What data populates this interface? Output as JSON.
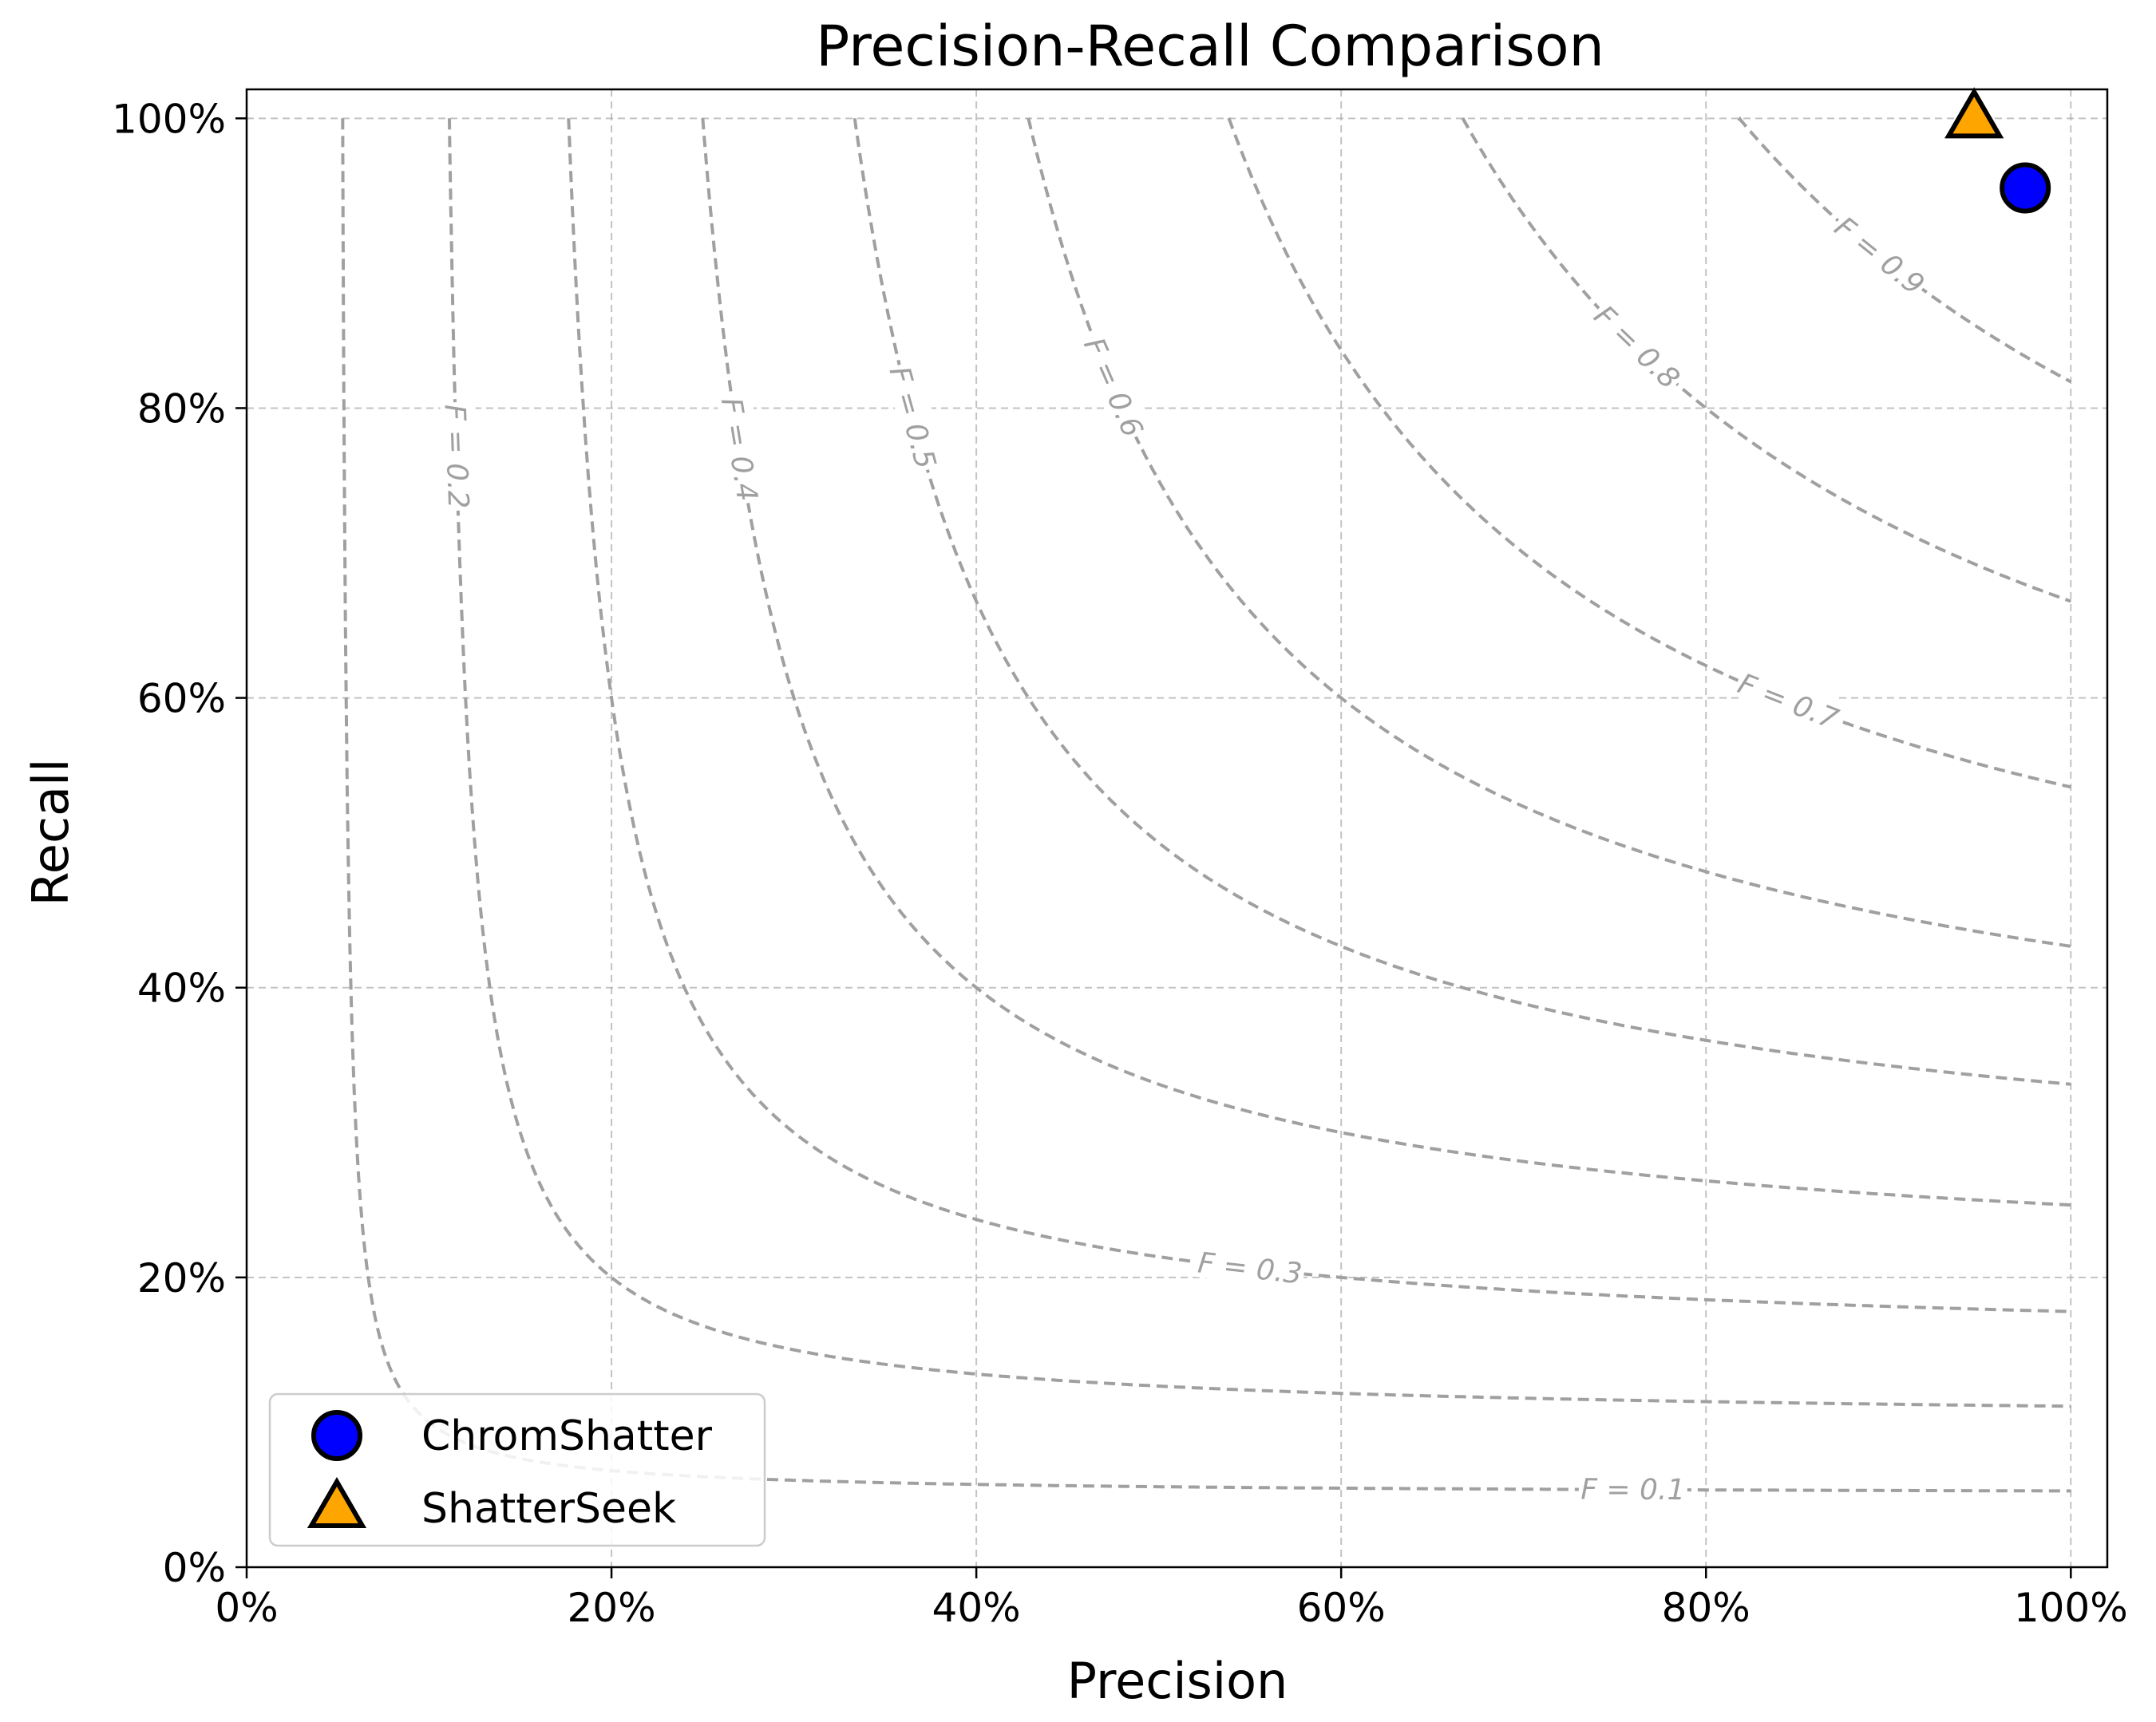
{
  "chart_data": {
    "type": "scatter",
    "title": "Precision-Recall Comparison",
    "xlabel": "Precision",
    "ylabel": "Recall",
    "xlim": [
      0,
      1.02
    ],
    "ylim": [
      0,
      1.02
    ],
    "x_ticks": [
      0,
      0.2,
      0.4,
      0.6,
      0.8,
      1.0
    ],
    "y_ticks": [
      0,
      0.2,
      0.4,
      0.6,
      0.8,
      1.0
    ],
    "x_tick_labels": [
      "0%",
      "20%",
      "40%",
      "60%",
      "80%",
      "100%"
    ],
    "y_tick_labels": [
      "0%",
      "20%",
      "40%",
      "60%",
      "80%",
      "100%"
    ],
    "grid": true,
    "legend_position": "lower-left",
    "series": [
      {
        "name": "ChromShatter",
        "marker": "circle",
        "color": "#0000ff",
        "points": [
          {
            "x": 0.975,
            "y": 0.952
          }
        ]
      },
      {
        "name": "ShatterSeek",
        "marker": "triangle",
        "color": "#ffa500",
        "points": [
          {
            "x": 0.947,
            "y": 1.0
          }
        ]
      }
    ],
    "iso_f_curves": [
      {
        "f": 0.1,
        "label": "F = 0.1",
        "label_at": 0.76
      },
      {
        "f": 0.2,
        "label": "F = 0.2",
        "label_at": 0.115
      },
      {
        "f": 0.3,
        "label": "F = 0.3",
        "label_at": 0.55
      },
      {
        "f": 0.4,
        "label": "F = 0.4",
        "label_at": 0.27
      },
      {
        "f": 0.5,
        "label": "F = 0.5",
        "label_at": 0.365
      },
      {
        "f": 0.6,
        "label": "F = 0.6",
        "label_at": 0.475
      },
      {
        "f": 0.7,
        "label": "F = 0.7",
        "label_at": 0.845
      },
      {
        "f": 0.8,
        "label": "F = 0.8",
        "label_at": 0.762
      },
      {
        "f": 0.9,
        "label": "F = 0.9",
        "label_at": 0.895
      }
    ]
  }
}
